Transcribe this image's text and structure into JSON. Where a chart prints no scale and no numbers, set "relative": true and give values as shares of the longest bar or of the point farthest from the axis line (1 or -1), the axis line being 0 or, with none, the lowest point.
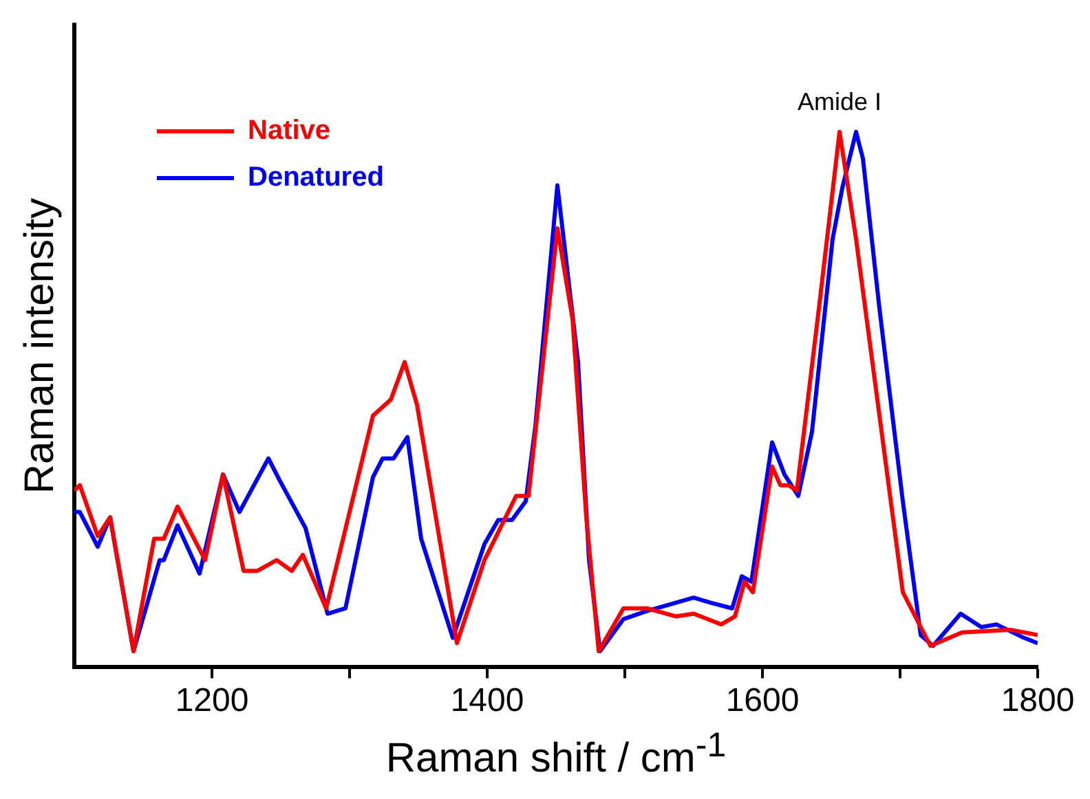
{
  "chart_data": {
    "type": "line",
    "xlabel": "Raman shift / cm$^{-1}$",
    "ylabel": "Raman intensity",
    "relative": true,
    "xlim": [
      1100,
      1800
    ],
    "xticks": [
      1200,
      {
        "value": 1300,
        "label": null
      },
      1400,
      {
        "value": 1500,
        "label": null
      },
      1600,
      {
        "value": 1700,
        "label": null
      },
      1800
    ],
    "legend": "top left",
    "marker": "none",
    "line_style": "solid",
    "grid": false,
    "annotations": [
      {
        "text": "Amide I",
        "x": 1656,
        "y": 1.0
      }
    ],
    "series": [
      {
        "name": "Native",
        "color": "#ff0000",
        "x": [
          1100,
          1104,
          1117,
          1126,
          1143,
          1158,
          1165,
          1175,
          1195,
          1208,
          1223,
          1233,
          1247,
          1258,
          1266,
          1283,
          1317,
          1330,
          1340,
          1349,
          1378,
          1398,
          1421,
          1430,
          1451,
          1462,
          1472,
          1481,
          1499,
          1516,
          1537,
          1550,
          1570,
          1580,
          1587,
          1593,
          1607,
          1613,
          1619,
          1625,
          1641,
          1656,
          1668,
          1685,
          1702,
          1722,
          1745,
          1780,
          1800
        ],
        "values": [
          0.33,
          0.34,
          0.245,
          0.28,
          0.03,
          0.24,
          0.24,
          0.3,
          0.2,
          0.36,
          0.18,
          0.18,
          0.2,
          0.18,
          0.21,
          0.11,
          0.47,
          0.5,
          0.57,
          0.49,
          0.045,
          0.2,
          0.32,
          0.32,
          0.82,
          0.65,
          0.28,
          0.03,
          0.11,
          0.11,
          0.095,
          0.1,
          0.08,
          0.095,
          0.16,
          0.14,
          0.375,
          0.34,
          0.34,
          0.33,
          0.67,
          1.0,
          0.8,
          0.47,
          0.14,
          0.04,
          0.065,
          0.07,
          0.06
        ]
      },
      {
        "name": "Denatured",
        "color": "#0000ff",
        "x": [
          1100,
          1104,
          1117,
          1126,
          1143,
          1162,
          1165,
          1175,
          1191,
          1208,
          1220,
          1241,
          1249,
          1268,
          1284,
          1297,
          1317,
          1324,
          1332,
          1342,
          1352,
          1375,
          1398,
          1408,
          1418,
          1428,
          1435,
          1451,
          1466,
          1474,
          1482,
          1499,
          1516,
          1550,
          1563,
          1578,
          1585,
          1592,
          1607,
          1616,
          1626,
          1636,
          1651,
          1658,
          1668,
          1673,
          1685,
          1702,
          1715,
          1724,
          1744,
          1759,
          1770,
          1790,
          1800
        ],
        "values": [
          0.29,
          0.29,
          0.225,
          0.28,
          0.03,
          0.2,
          0.2,
          0.265,
          0.175,
          0.36,
          0.29,
          0.39,
          0.35,
          0.26,
          0.1,
          0.11,
          0.355,
          0.39,
          0.39,
          0.43,
          0.24,
          0.055,
          0.23,
          0.275,
          0.275,
          0.31,
          0.45,
          0.9,
          0.57,
          0.2,
          0.03,
          0.09,
          0.105,
          0.13,
          0.12,
          0.11,
          0.17,
          0.16,
          0.42,
          0.36,
          0.32,
          0.44,
          0.8,
          0.895,
          1.0,
          0.95,
          0.67,
          0.31,
          0.06,
          0.04,
          0.1,
          0.075,
          0.08,
          0.055,
          0.045
        ]
      }
    ]
  }
}
